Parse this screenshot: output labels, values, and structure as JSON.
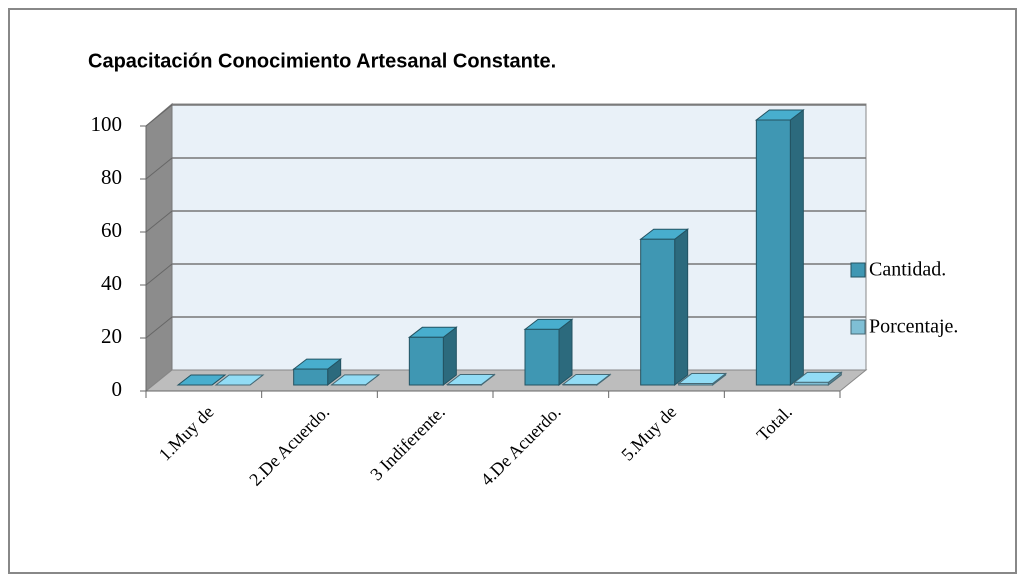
{
  "chart_data": {
    "type": "bar3d",
    "title": "Capacitación Conocimiento Artesanal Constante.",
    "categories": [
      "1.Muy de",
      "2.De Acuerdo.",
      "3 Indiferente.",
      "4.De Acuerdo.",
      "5.Muy de",
      "Total."
    ],
    "series": [
      {
        "name": "Cantidad.",
        "color": "#3f97b3",
        "values": [
          0,
          6,
          18,
          21,
          55,
          100
        ]
      },
      {
        "name": "Porcentaje.",
        "color": "#7fbfd5",
        "values": [
          0,
          0.06,
          0.18,
          0.21,
          0.55,
          1
        ]
      }
    ],
    "ylim": [
      0,
      100
    ],
    "yticks": [
      0,
      20,
      40,
      60,
      80,
      100
    ],
    "grid": true,
    "legend": "right"
  }
}
